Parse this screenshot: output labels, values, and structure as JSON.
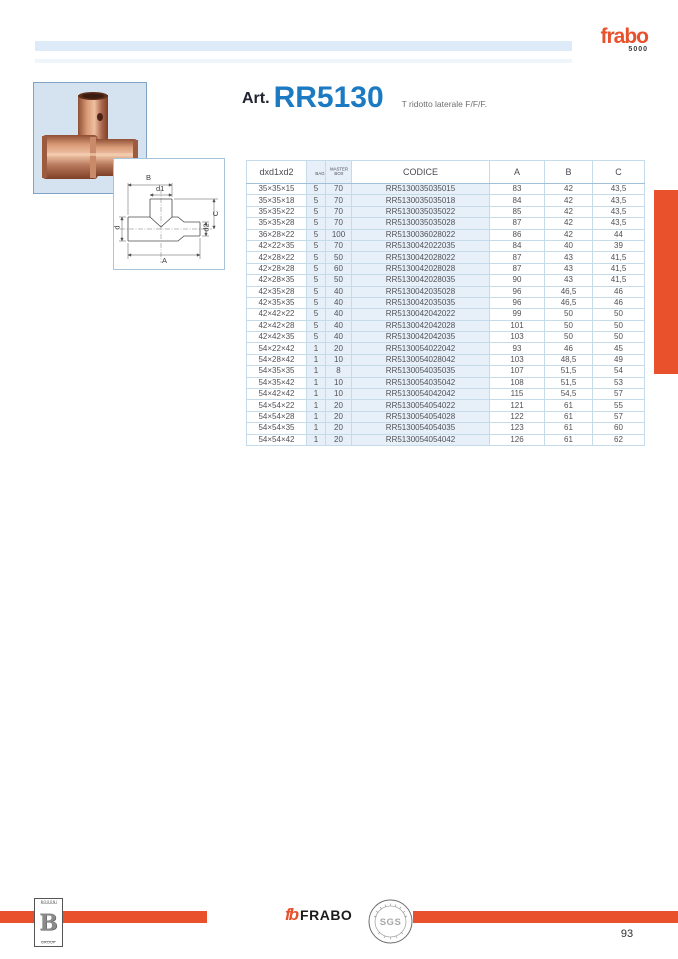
{
  "brand": {
    "logo": "frabo",
    "logo_sub": "5000"
  },
  "title": {
    "prefix": "Art.",
    "code": "RR5130",
    "subtitle": "T ridotto laterale F/F/F."
  },
  "drawing": {
    "labels": {
      "b": "B",
      "d1": "d1",
      "c": "C",
      "d": "d",
      "d2": "d2",
      "a": "A"
    }
  },
  "table": {
    "columns": [
      "dxd1xd2",
      "BAG",
      "MASTER BOX",
      "CODICE",
      "A",
      "B",
      "C"
    ],
    "rows": [
      [
        "35×35×15",
        "5",
        "70",
        "RR5130035035015",
        "83",
        "42",
        "43,5"
      ],
      [
        "35×35×18",
        "5",
        "70",
        "RR5130035035018",
        "84",
        "42",
        "43,5"
      ],
      [
        "35×35×22",
        "5",
        "70",
        "RR5130035035022",
        "85",
        "42",
        "43,5"
      ],
      [
        "35×35×28",
        "5",
        "70",
        "RR5130035035028",
        "87",
        "42",
        "43,5"
      ],
      [
        "36×28×22",
        "5",
        "100",
        "RR5130036028022",
        "86",
        "42",
        "44"
      ],
      [
        "42×22×35",
        "5",
        "70",
        "RR5130042022035",
        "84",
        "40",
        "39"
      ],
      [
        "42×28×22",
        "5",
        "50",
        "RR5130042028022",
        "87",
        "43",
        "41,5"
      ],
      [
        "42×28×28",
        "5",
        "60",
        "RR5130042028028",
        "87",
        "43",
        "41,5"
      ],
      [
        "42×28×35",
        "5",
        "50",
        "RR5130042028035",
        "90",
        "43",
        "41,5"
      ],
      [
        "42×35×28",
        "5",
        "40",
        "RR5130042035028",
        "96",
        "46,5",
        "46"
      ],
      [
        "42×35×35",
        "5",
        "40",
        "RR5130042035035",
        "96",
        "46,5",
        "46"
      ],
      [
        "42×42×22",
        "5",
        "40",
        "RR5130042042022",
        "99",
        "50",
        "50"
      ],
      [
        "42×42×28",
        "5",
        "40",
        "RR5130042042028",
        "101",
        "50",
        "50"
      ],
      [
        "42×42×35",
        "5",
        "40",
        "RR5130042042035",
        "103",
        "50",
        "50"
      ],
      [
        "54×22×42",
        "1",
        "20",
        "RR5130054022042",
        "93",
        "46",
        "45"
      ],
      [
        "54×28×42",
        "1",
        "10",
        "RR5130054028042",
        "103",
        "48,5",
        "49"
      ],
      [
        "54×35×35",
        "1",
        "8",
        "RR5130054035035",
        "107",
        "51,5",
        "54"
      ],
      [
        "54×35×42",
        "1",
        "10",
        "RR5130054035042",
        "108",
        "51,5",
        "53"
      ],
      [
        "54×42×42",
        "1",
        "10",
        "RR5130054042042",
        "115",
        "54,5",
        "57"
      ],
      [
        "54×54×22",
        "1",
        "20",
        "RR5130054054022",
        "121",
        "61",
        "55"
      ],
      [
        "54×54×28",
        "1",
        "20",
        "RR5130054054028",
        "122",
        "61",
        "57"
      ],
      [
        "54×54×35",
        "1",
        "20",
        "RR5130054054035",
        "123",
        "61",
        "60"
      ],
      [
        "54×54×42",
        "1",
        "20",
        "RR5130054054042",
        "126",
        "61",
        "62"
      ]
    ]
  },
  "footer": {
    "group_top": "BOGONI",
    "group_letter": "B",
    "group_bottom": "GROUP",
    "brand_mark": "fb",
    "brand_name": "FRABO",
    "stamp_center": "SGS",
    "page_number": "93"
  },
  "colors": {
    "accent": "#e8512b",
    "title_blue": "#1b7ac2",
    "table_border": "#8fb4d2",
    "row_tint": "#e7f0f8"
  }
}
